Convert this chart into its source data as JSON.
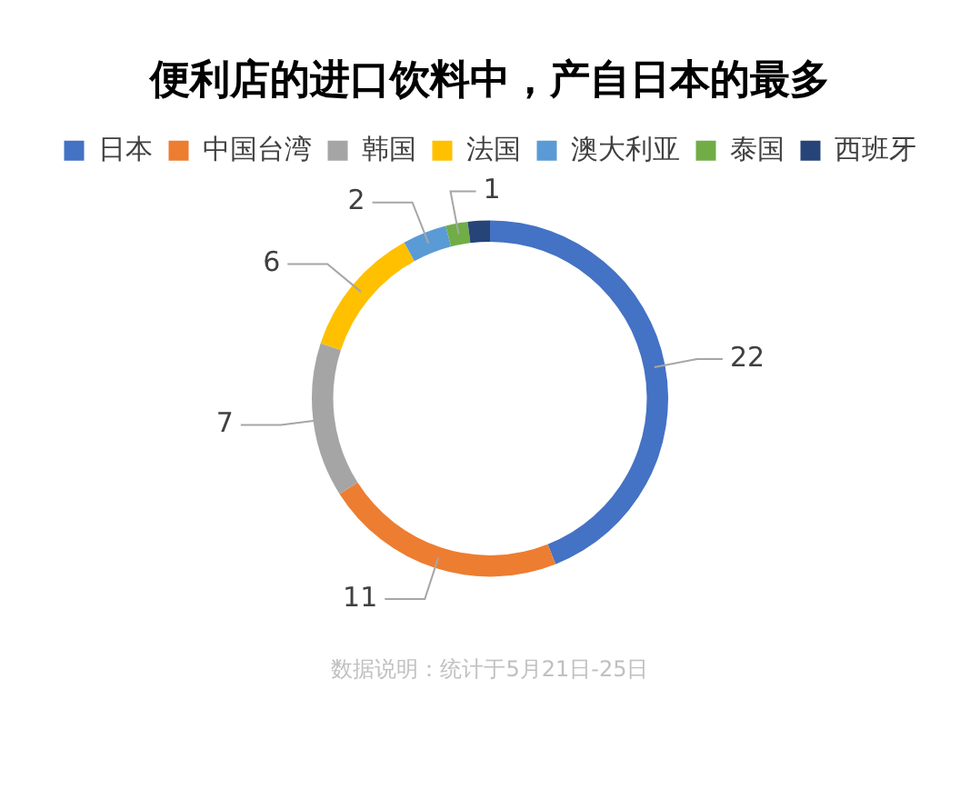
{
  "chart_data": {
    "type": "donut",
    "title": "便利店的进口饮料中，产自日本的最多",
    "categories": [
      "日本",
      "中国台湾",
      "韩国",
      "法国",
      "澳大利亚",
      "泰国",
      "西班牙"
    ],
    "values": [
      22,
      11,
      7,
      6,
      2,
      1,
      1
    ],
    "colors": [
      "#4472c4",
      "#ed7d31",
      "#a5a5a5",
      "#ffc000",
      "#5b9bd5",
      "#70ad47",
      "#264478"
    ],
    "value_labels": [
      "22",
      "11",
      "7",
      "6",
      "2",
      "1",
      null
    ],
    "legend": "top",
    "annotations": [
      "数据说明：统计于5月21日-25日"
    ]
  }
}
